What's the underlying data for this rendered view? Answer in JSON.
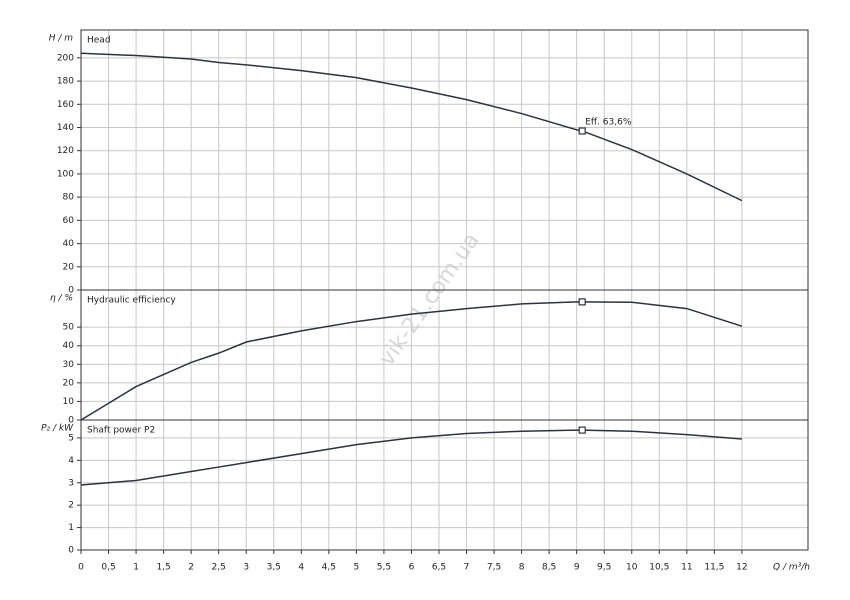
{
  "chart_data": [
    {
      "type": "line",
      "title": "Head",
      "ylabel": "H / m",
      "color": "#2b3340",
      "x": [
        0,
        1,
        2,
        2.5,
        3,
        4,
        5,
        6,
        7,
        8,
        9,
        9.1,
        10,
        11,
        12
      ],
      "values": [
        204,
        202,
        199,
        196,
        194,
        189,
        183,
        174,
        164,
        152,
        138,
        137,
        121,
        100,
        77
      ],
      "marker": {
        "x": 9.1,
        "y": 137,
        "label": "Eff. 63,6%"
      },
      "ylim": [
        0,
        224
      ],
      "yticks": [
        0,
        20,
        40,
        60,
        80,
        100,
        120,
        140,
        160,
        180,
        200
      ],
      "grid": true
    },
    {
      "type": "line",
      "title": "Hydraulic efficiency",
      "ylabel": "η / %",
      "color": "#2b3340",
      "x": [
        0,
        1,
        2,
        2.5,
        3,
        4,
        5,
        6,
        7,
        8,
        9,
        9.1,
        10,
        11,
        12
      ],
      "values": [
        0,
        18,
        31,
        36,
        42,
        48,
        53,
        57,
        60,
        62.5,
        63.6,
        63.6,
        63.4,
        60,
        50.5
      ],
      "marker": {
        "x": 9.1,
        "y": 63.6
      },
      "ylim": [
        0,
        70
      ],
      "yticks": [
        0,
        10,
        20,
        30,
        40,
        50
      ],
      "grid": true
    },
    {
      "type": "line",
      "title": "Shaft power P2",
      "ylabel": "P₂ / kW",
      "color": "#2b3340",
      "x": [
        0,
        1,
        2,
        2.5,
        3,
        4,
        5,
        6,
        7,
        8,
        9,
        9.1,
        10,
        11,
        12
      ],
      "values": [
        2.9,
        3.1,
        3.5,
        3.7,
        3.9,
        4.3,
        4.7,
        5.0,
        5.2,
        5.3,
        5.35,
        5.35,
        5.3,
        5.15,
        4.95
      ],
      "marker": {
        "x": 9.1,
        "y": 5.35
      },
      "ylim": [
        0,
        5.8
      ],
      "yticks": [
        0,
        1,
        2,
        3,
        4,
        5
      ],
      "grid": true,
      "xlabel": "Q / m³/h",
      "xlim": [
        0,
        13.2
      ],
      "xticks": [
        0,
        {
          "value": 0.5,
          "label": "0,5"
        },
        1,
        {
          "value": 1.5,
          "label": "1,5"
        },
        2,
        {
          "value": 2.5,
          "label": "2,5"
        },
        3,
        {
          "value": 3.5,
          "label": "3,5"
        },
        4,
        {
          "value": 4.5,
          "label": "4,5"
        },
        5,
        {
          "value": 5.5,
          "label": "5,5"
        },
        6,
        {
          "value": 6.5,
          "label": "6,5"
        },
        7,
        {
          "value": 7.5,
          "label": "7,5"
        },
        8,
        {
          "value": 8.5,
          "label": "8,5"
        },
        9,
        {
          "value": 9.5,
          "label": "9,5"
        },
        10,
        {
          "value": 10.5,
          "label": "10,5"
        },
        11,
        {
          "value": 11.5,
          "label": "11,5"
        },
        12
      ]
    }
  ],
  "watermark": "vik-21.com.ua"
}
